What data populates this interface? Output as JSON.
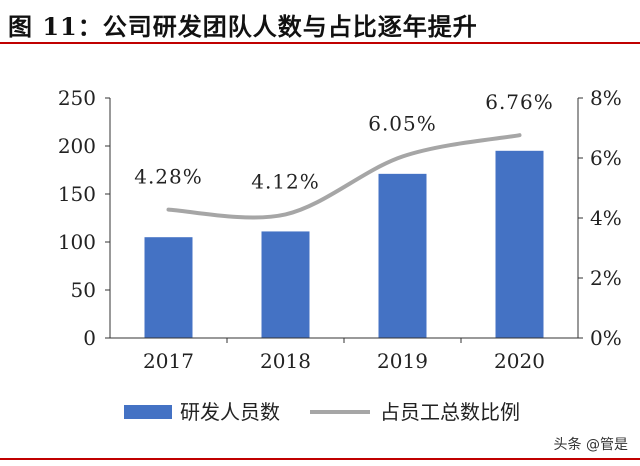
{
  "title": "图 11：公司研发团队人数与占比逐年提升",
  "watermark": "头条 @管是",
  "colors": {
    "bar": "#4472c4",
    "line": "#a6a6a6",
    "accent": "#c00000",
    "axis": "#333333"
  },
  "chart_data": {
    "type": "bar",
    "categories": [
      "2017",
      "2018",
      "2019",
      "2020"
    ],
    "series": [
      {
        "name": "研发人员数",
        "type": "bar",
        "axis": "left",
        "values": [
          105,
          111,
          171,
          195
        ]
      },
      {
        "name": "占员工总数比例",
        "type": "line",
        "axis": "right",
        "values": [
          4.28,
          4.12,
          6.05,
          6.76
        ],
        "labels": [
          "4.28%",
          "4.12%",
          "6.05%",
          "6.76%"
        ]
      }
    ],
    "y_left": {
      "range": [
        0,
        250
      ],
      "ticks": [
        "0",
        "50",
        "100",
        "150",
        "200",
        "250"
      ]
    },
    "y_right": {
      "range": [
        0,
        8
      ],
      "ticks": [
        "0%",
        "2%",
        "4%",
        "6%",
        "8%"
      ]
    },
    "legend_position": "bottom",
    "grid": false
  }
}
